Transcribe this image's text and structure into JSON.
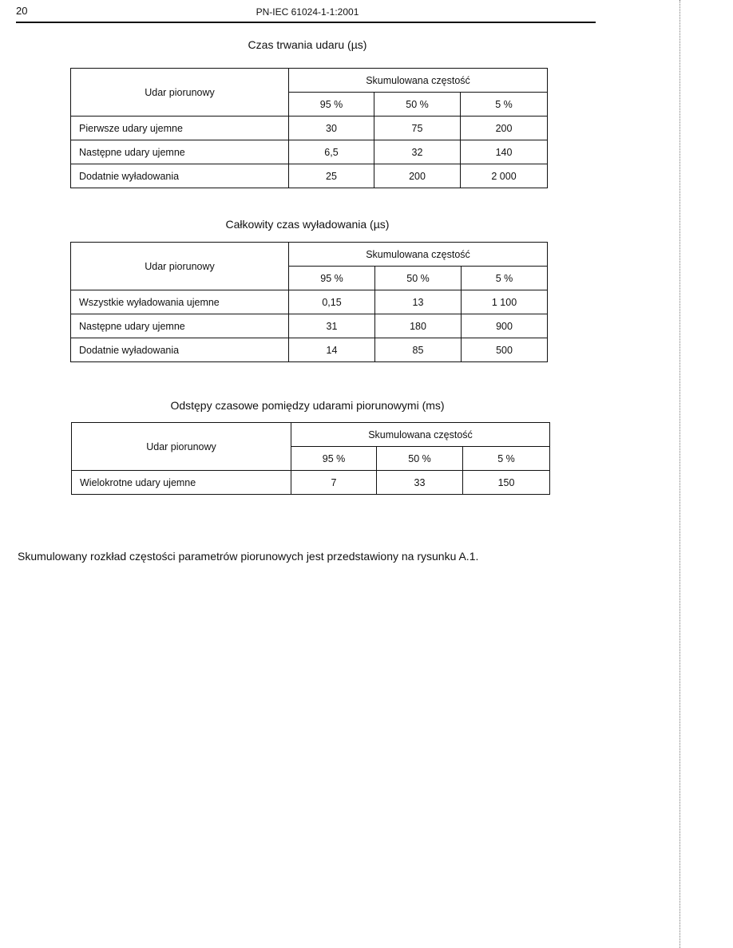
{
  "header": {
    "page_number": "20",
    "document_id": "PN-IEC 61024-1-1:2001"
  },
  "tables": [
    {
      "title": "Czas trwania udaru (µs)",
      "row_header": "Udar piorunowy",
      "group_header": "Skumulowana częstość",
      "columns": [
        "95 %",
        "50 %",
        "5 %"
      ],
      "rows": [
        {
          "label": "Pierwsze udary ujemne",
          "values": [
            "30",
            "75",
            "200"
          ]
        },
        {
          "label": "Następne udary ujemne",
          "values": [
            "6,5",
            "32",
            "140"
          ]
        },
        {
          "label": "Dodatnie wyładowania",
          "values": [
            "25",
            "200",
            "2 000"
          ]
        }
      ]
    },
    {
      "title": "Całkowity czas wyładowania (µs)",
      "row_header": "Udar piorunowy",
      "group_header": "Skumulowana częstość",
      "columns": [
        "95 %",
        "50 %",
        "5 %"
      ],
      "rows": [
        {
          "label": "Wszystkie wyładowania ujemne",
          "values": [
            "0,15",
            "13",
            "1 100"
          ]
        },
        {
          "label": "Następne udary ujemne",
          "values": [
            "31",
            "180",
            "900"
          ]
        },
        {
          "label": "Dodatnie wyładowania",
          "values": [
            "14",
            "85",
            "500"
          ]
        }
      ]
    },
    {
      "title": "Odstępy czasowe pomiędzy udarami piorunowymi (ms)",
      "row_header": "Udar piorunowy",
      "group_header": "Skumulowana częstość",
      "columns": [
        "95 %",
        "50 %",
        "5 %"
      ],
      "rows": [
        {
          "label": "Wielokrotne udary ujemne",
          "values": [
            "7",
            "33",
            "150"
          ]
        }
      ]
    }
  ],
  "footnote": "Skumulowany rozkład częstości parametrów piorunowych jest przedstawiony na rysunku A.1."
}
